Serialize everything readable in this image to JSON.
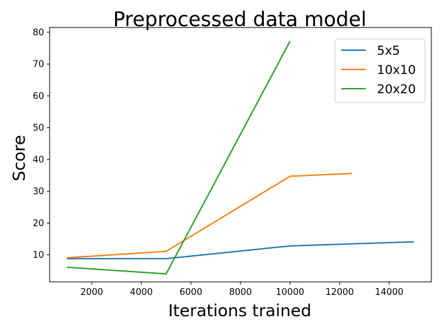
{
  "chart_data": {
    "type": "line",
    "title": "Preprocessed data model",
    "xlabel": "Iterations trained",
    "ylabel": "Score",
    "xlim": [
      300,
      15700
    ],
    "ylim": [
      1.5,
      81.5
    ],
    "xticks": [
      2000,
      4000,
      6000,
      8000,
      10000,
      12000,
      14000
    ],
    "yticks": [
      10,
      20,
      30,
      40,
      50,
      60,
      70,
      80
    ],
    "grid": false,
    "legend_position": "top-right",
    "series": [
      {
        "name": "5x5",
        "color": "#1f77b4",
        "x": [
          1000,
          5000,
          10000,
          15000
        ],
        "y": [
          8.8,
          8.8,
          12.8,
          14.1
        ]
      },
      {
        "name": "10x10",
        "color": "#ff7f0e",
        "x": [
          1000,
          5000,
          10000,
          12500
        ],
        "y": [
          9.1,
          11.1,
          34.7,
          35.6
        ]
      },
      {
        "name": "20x20",
        "color": "#2ca02c",
        "x": [
          1000,
          5000,
          10000
        ],
        "y": [
          6.1,
          4.0,
          77.2
        ]
      }
    ]
  }
}
